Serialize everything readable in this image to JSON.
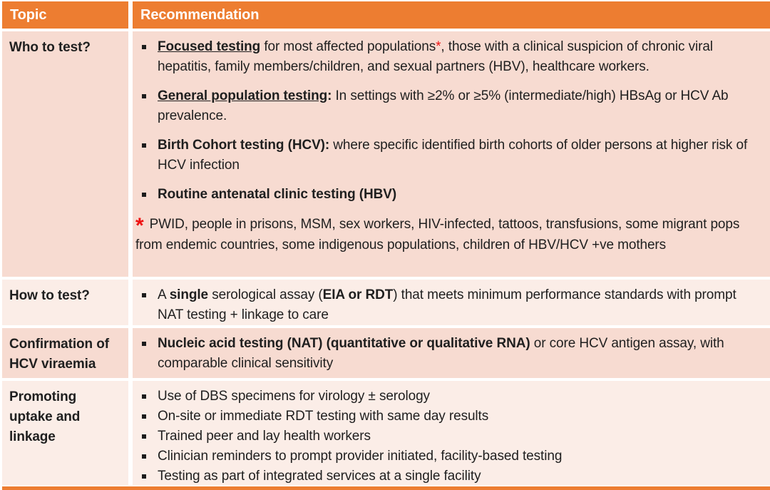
{
  "colors": {
    "accent": "#ED7D31",
    "row_dark": "#F7DBD1",
    "row_light": "#FBEDE7",
    "footnote_red": "#EE1111",
    "header_text": "#FFFFFF",
    "body_text": "#1F1F1F"
  },
  "header": {
    "topic": "Topic",
    "recommendation": "Recommendation"
  },
  "rows": [
    {
      "topic": "Who to test?",
      "shade": "dark",
      "compact": false,
      "items": [
        {
          "type": "bullet",
          "segments": [
            {
              "t": "Focused testing",
              "b": true,
              "u": true
            },
            {
              "t": " for most affected populations"
            },
            {
              "t": "*",
              "red": true
            },
            {
              "t": ", those with a clinical suspicion of chronic viral hepatitis, family members/children, and sexual partners (HBV), healthcare workers."
            }
          ]
        },
        {
          "type": "bullet",
          "segments": [
            {
              "t": "General population testing",
              "b": true,
              "u": true
            },
            {
              "t": ":",
              "b": true
            },
            {
              "t": " In settings with ≥2% or ≥5% (intermediate/high) HBsAg  or HCV Ab prevalence."
            }
          ]
        },
        {
          "type": "bullet",
          "segments": [
            {
              "t": "Birth Cohort testing (HCV):",
              "b": true
            },
            {
              "t": " where specific identified birth cohorts of older persons at higher risk of HCV infection"
            }
          ]
        },
        {
          "type": "bullet",
          "segments": [
            {
              "t": "Routine antenatal clinic testing (HBV)",
              "b": true
            }
          ]
        },
        {
          "type": "footnote",
          "asterisk": "*",
          "text": "PWID, people in prisons, MSM, sex workers, HIV-infected, tattoos, transfusions, some migrant pops from endemic countries, some indigenous populations, children of HBV/HCV +ve mothers"
        }
      ]
    },
    {
      "topic": "How to test?",
      "shade": "light",
      "compact": false,
      "items": [
        {
          "type": "bullet",
          "segments": [
            {
              "t": "A "
            },
            {
              "t": "single",
              "b": true
            },
            {
              "t": " serological assay ("
            },
            {
              "t": "EIA or RDT",
              "b": true
            },
            {
              "t": ") that meets minimum performance standards with prompt NAT testing + linkage to care"
            }
          ]
        }
      ]
    },
    {
      "topic": "Confirmation of\nHCV viraemia",
      "shade": "dark",
      "compact": false,
      "items": [
        {
          "type": "bullet",
          "segments": [
            {
              "t": "Nucleic acid testing (NAT) (quantitative or qualitative RNA)",
              "b": true
            },
            {
              "t": " or core HCV antigen assay, with comparable clinical sensitivity"
            }
          ]
        }
      ]
    },
    {
      "topic": "Promoting\nuptake and\nlinkage",
      "shade": "light",
      "compact": true,
      "items": [
        {
          "type": "bullet",
          "segments": [
            {
              "t": "Use of DBS specimens for virology ± serology"
            }
          ]
        },
        {
          "type": "bullet",
          "segments": [
            {
              "t": "On-site or immediate RDT testing with same day results"
            }
          ]
        },
        {
          "type": "bullet",
          "segments": [
            {
              "t": "Trained peer and lay health workers"
            }
          ]
        },
        {
          "type": "bullet",
          "segments": [
            {
              "t": "Clinician reminders to prompt provider initiated, facility-based testing"
            }
          ]
        },
        {
          "type": "bullet",
          "segments": [
            {
              "t": "Testing as part of integrated services at a single facility"
            }
          ]
        }
      ]
    }
  ]
}
